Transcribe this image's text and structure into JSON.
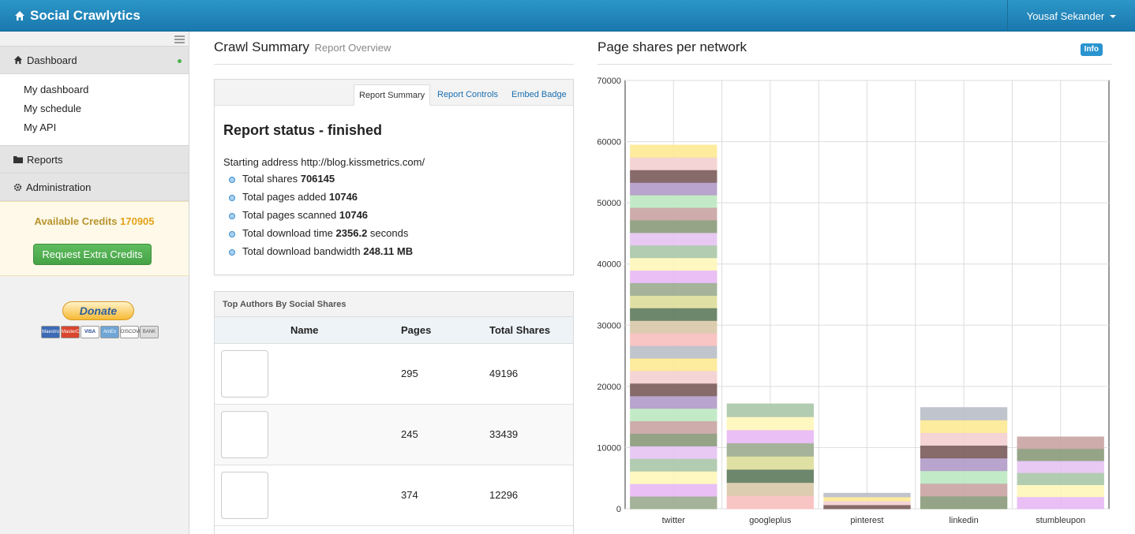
{
  "navbar": {
    "brand": "Social Crawlytics",
    "user": "Yousaf Sekander"
  },
  "sidebar": {
    "dashboard": "Dashboard",
    "items": [
      "My dashboard",
      "My schedule",
      "My API"
    ],
    "reports": "Reports",
    "administration": "Administration",
    "credits_label": "Available Credits",
    "credits_value": "170905",
    "credits_button": "Request Extra Credits",
    "donate": "Donate",
    "cards": [
      "Maestro",
      "MasterCard",
      "VISA",
      "AmEx",
      "DISCOVER",
      "BANK"
    ]
  },
  "summary": {
    "title": "Crawl Summary",
    "subtitle": "Report Overview",
    "tabs": [
      "Report Summary",
      "Report Controls",
      "Embed Badge"
    ],
    "status": "Report status - finished",
    "start_label": "Starting address",
    "start_url": "http://blog.kissmetrics.com/",
    "stats": [
      {
        "label": "Total shares",
        "value": "706145",
        "unit": ""
      },
      {
        "label": "Total pages added",
        "value": "10746",
        "unit": ""
      },
      {
        "label": "Total pages scanned",
        "value": "10746",
        "unit": ""
      },
      {
        "label": "Total download time",
        "value": "2356.2",
        "unit": " seconds"
      },
      {
        "label": "Total download bandwidth",
        "value": "248.11 MB",
        "unit": ""
      }
    ]
  },
  "authors": {
    "title": "Top Authors By Social Shares",
    "columns": [
      "Name",
      "Pages",
      "Total Shares"
    ],
    "rows": [
      {
        "pages": "295",
        "shares": "49196"
      },
      {
        "pages": "245",
        "shares": "33439"
      },
      {
        "pages": "374",
        "shares": "12296"
      }
    ]
  },
  "chart_header": {
    "title": "Page shares per network",
    "info": "Info"
  },
  "chart_data": {
    "type": "bar",
    "title": "Page shares per network",
    "categories": [
      "twitter",
      "googleplus",
      "pinterest",
      "linkedin",
      "stumbleupon"
    ],
    "values": [
      59500,
      17200,
      2600,
      16600,
      11800
    ],
    "ylim": [
      0,
      70000
    ],
    "yticks": [
      0,
      10000,
      20000,
      30000,
      40000,
      50000,
      60000,
      70000
    ],
    "grid": true,
    "palette": [
      "#9aab8e",
      "#c9a3a3",
      "#b9bec6",
      "#e7b8f4",
      "#bde8c1",
      "#f8bebe",
      "#fff6b9",
      "#b09ac6",
      "#d8c8a8",
      "#a8c6a8",
      "#7a5a5a",
      "#5d7a5d",
      "#e4c3f2",
      "#f3cfcf",
      "#dcdd99",
      "#8a9a7a",
      "#fde994"
    ]
  }
}
